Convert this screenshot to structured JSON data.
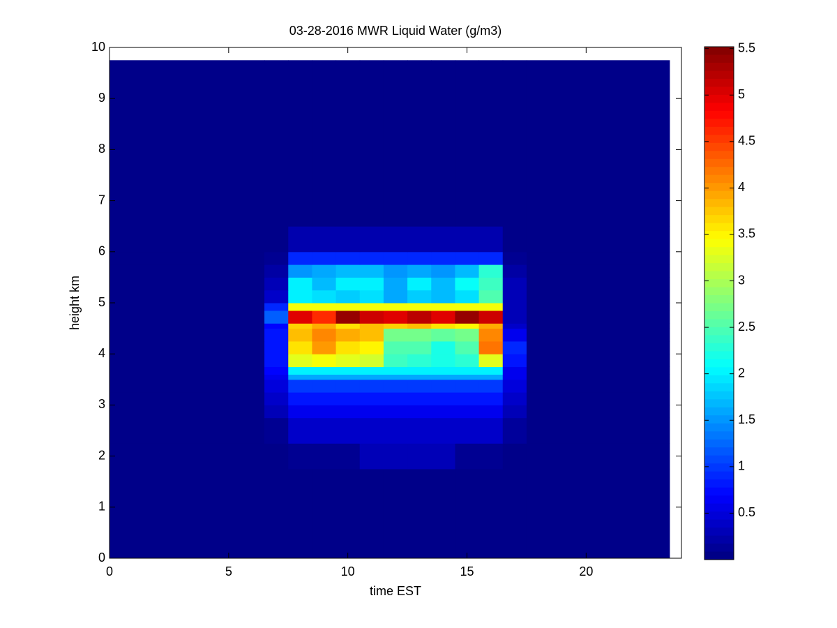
{
  "chart_data": {
    "type": "heatmap",
    "title": "03-28-2016 MWR Liquid Water (g/m3)",
    "xlabel": "time EST",
    "ylabel": "height km",
    "x_bins": [
      0,
      6.5,
      7.5,
      8.5,
      9.5,
      10.5,
      11.5,
      12.5,
      13.5,
      14.5,
      15.5,
      16.5,
      17.5,
      23.5
    ],
    "y_bins": [
      0,
      1.75,
      2.25,
      2.75,
      3.0,
      3.25,
      3.5,
      3.6,
      3.75,
      4.0,
      4.25,
      4.5,
      4.6,
      4.85,
      5.0,
      5.25,
      5.5,
      5.75,
      6.0,
      6.5,
      9.75
    ],
    "values": [
      [
        0.05,
        0.05,
        0.05,
        0.05,
        0.05,
        0.05,
        0.05,
        0.05,
        0.05,
        0.05,
        0.05,
        0.05,
        0.05
      ],
      [
        0.05,
        0.05,
        0.1,
        0.1,
        0.1,
        0.3,
        0.3,
        0.3,
        0.3,
        0.1,
        0.1,
        0.05,
        0.05
      ],
      [
        0.05,
        0.1,
        0.4,
        0.4,
        0.4,
        0.4,
        0.4,
        0.4,
        0.4,
        0.4,
        0.4,
        0.15,
        0.05
      ],
      [
        0.05,
        0.3,
        0.6,
        0.6,
        0.6,
        0.6,
        0.6,
        0.6,
        0.6,
        0.6,
        0.6,
        0.3,
        0.05
      ],
      [
        0.05,
        0.4,
        0.8,
        0.8,
        0.8,
        0.8,
        0.8,
        0.8,
        0.8,
        0.8,
        0.8,
        0.4,
        0.05
      ],
      [
        0.05,
        0.5,
        1.0,
        1.0,
        1.0,
        1.0,
        1.0,
        1.0,
        1.0,
        1.0,
        1.0,
        0.5,
        0.05
      ],
      [
        0.05,
        0.6,
        1.6,
        1.6,
        1.6,
        1.6,
        1.6,
        1.6,
        1.6,
        1.6,
        1.6,
        0.6,
        0.05
      ],
      [
        0.05,
        0.7,
        2.0,
        2.0,
        2.0,
        2.0,
        2.0,
        2.0,
        2.0,
        2.0,
        2.0,
        0.6,
        0.05
      ],
      [
        0.05,
        0.8,
        3.3,
        3.4,
        3.3,
        3.2,
        2.4,
        2.3,
        2.2,
        2.3,
        3.3,
        0.8,
        0.05
      ],
      [
        0.05,
        0.8,
        3.6,
        4.0,
        3.6,
        3.5,
        2.5,
        2.5,
        2.2,
        2.5,
        4.2,
        0.9,
        0.05
      ],
      [
        0.05,
        0.8,
        3.8,
        4.1,
        3.9,
        3.8,
        2.7,
        2.7,
        2.6,
        2.7,
        4.1,
        0.6,
        0.05
      ],
      [
        0.05,
        0.7,
        3.7,
        3.9,
        3.6,
        3.8,
        3.7,
        3.8,
        3.6,
        3.5,
        3.9,
        0.4,
        0.05
      ],
      [
        0.05,
        1.2,
        5.0,
        4.6,
        5.4,
        5.1,
        5.0,
        5.2,
        5.0,
        5.4,
        5.1,
        0.3,
        0.05
      ],
      [
        0.05,
        0.9,
        3.4,
        3.4,
        3.4,
        3.4,
        3.4,
        3.4,
        3.4,
        3.4,
        3.4,
        0.3,
        0.05
      ],
      [
        0.05,
        0.4,
        2.0,
        1.9,
        1.8,
        1.9,
        1.6,
        1.8,
        1.7,
        1.9,
        2.5,
        0.3,
        0.05
      ],
      [
        0.05,
        0.3,
        2.0,
        1.7,
        2.0,
        2.0,
        1.6,
        2.0,
        1.7,
        2.1,
        2.4,
        0.3,
        0.05
      ],
      [
        0.05,
        0.2,
        1.5,
        1.6,
        1.7,
        1.7,
        1.5,
        1.6,
        1.5,
        1.7,
        2.3,
        0.2,
        0.05
      ],
      [
        0.05,
        0.1,
        0.9,
        0.9,
        0.9,
        0.9,
        0.9,
        0.9,
        0.9,
        0.9,
        0.9,
        0.1,
        0.05
      ],
      [
        0.05,
        0.05,
        0.25,
        0.25,
        0.25,
        0.25,
        0.25,
        0.25,
        0.25,
        0.25,
        0.25,
        0.05,
        0.05
      ],
      [
        0.05,
        0.05,
        0.05,
        0.05,
        0.05,
        0.05,
        0.05,
        0.05,
        0.05,
        0.05,
        0.05,
        0.05,
        0.05
      ]
    ],
    "colormap": "jet",
    "clim": [
      0,
      5.52
    ],
    "cticks": [
      0.5,
      1,
      1.5,
      2,
      2.5,
      3,
      3.5,
      4,
      4.5,
      5,
      5.5
    ],
    "xlim": [
      0,
      24
    ],
    "xticks": [
      0,
      5,
      10,
      15,
      20
    ],
    "ylim": [
      0,
      10
    ],
    "yticks": [
      0,
      1,
      2,
      3,
      4,
      5,
      6,
      7,
      8,
      9,
      10
    ]
  }
}
